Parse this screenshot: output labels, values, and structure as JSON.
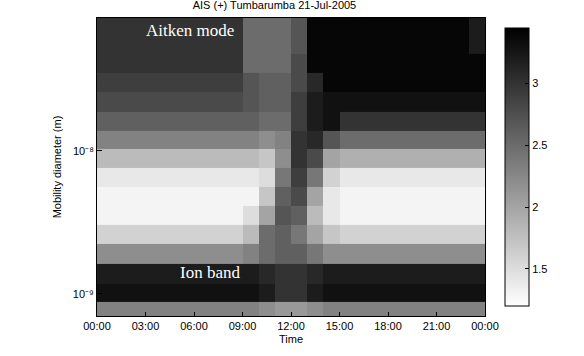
{
  "chart_data": {
    "type": "heatmap",
    "title": "AIS (+) Tumbarumba 21-Jul-2005",
    "x_label": "Time",
    "y_label": "Mobility diameter (m)",
    "log": "y",
    "grid": false,
    "x": [
      0.5,
      1.5,
      2.5,
      3.5,
      4.5,
      5.5,
      6.5,
      7.5,
      8.5,
      9.5,
      10.5,
      11.5,
      12.5,
      13.5,
      14.5,
      15.5,
      16.5,
      17.5,
      18.5,
      19.5,
      20.5,
      21.5,
      22.5,
      23.5
    ],
    "y": [
      7.6e-10,
      1e-09,
      1.4e-09,
      1.9e-09,
      2.6e-09,
      3.5e-09,
      4.8e-09,
      6.5e-09,
      8.8e-09,
      1.2e-08,
      1.6e-08,
      2.2e-08,
      3e-08,
      4.1e-08,
      5.5e-08,
      7.6e-08
    ],
    "xlim": [
      0,
      24
    ],
    "xticks": [
      {
        "value": 0,
        "label": "00:00"
      },
      {
        "value": 3,
        "label": "03:00"
      },
      {
        "value": 6,
        "label": "06:00"
      },
      {
        "value": 9,
        "label": "09:00"
      },
      {
        "value": 12,
        "label": "12:00"
      },
      {
        "value": 15,
        "label": "15:00"
      },
      {
        "value": 18,
        "label": "18:00"
      },
      {
        "value": 21,
        "label": "21:00"
      },
      {
        "value": 24,
        "label": "00:00"
      }
    ],
    "ylim": [
      7e-10,
      8.5e-08
    ],
    "yticks": [
      {
        "value": 1e-09,
        "label": "10⁻⁹"
      },
      {
        "value": 1e-08,
        "label": "10⁻⁸"
      }
    ],
    "cells": [
      [
        2.3,
        2.3,
        2.3,
        2.3,
        2.3,
        2.3,
        2.3,
        2.3,
        2.3,
        2.3,
        2.2,
        2.1,
        2.1,
        2.2,
        2.3,
        2.3,
        2.3,
        2.3,
        2.3,
        2.3,
        2.3,
        2.3,
        2.3,
        2.3
      ],
      [
        3.3,
        3.3,
        3.3,
        3.3,
        3.3,
        3.3,
        3.3,
        3.3,
        3.3,
        3.3,
        3.2,
        3.0,
        3.0,
        3.2,
        3.3,
        3.3,
        3.3,
        3.3,
        3.3,
        3.3,
        3.3,
        3.3,
        3.3,
        3.3
      ],
      [
        3.2,
        3.2,
        3.2,
        3.2,
        3.2,
        3.2,
        3.2,
        3.2,
        3.2,
        3.2,
        3.1,
        3.0,
        3.0,
        3.1,
        3.2,
        3.2,
        3.2,
        3.2,
        3.2,
        3.2,
        3.2,
        3.2,
        3.2,
        3.2
      ],
      [
        2.2,
        2.2,
        2.2,
        2.2,
        2.2,
        2.2,
        2.2,
        2.2,
        2.2,
        2.3,
        2.5,
        2.6,
        2.6,
        2.4,
        2.2,
        2.2,
        2.2,
        2.2,
        2.2,
        2.2,
        2.2,
        2.2,
        2.2,
        2.2
      ],
      [
        1.6,
        1.6,
        1.6,
        1.6,
        1.6,
        1.6,
        1.6,
        1.6,
        1.6,
        1.8,
        2.5,
        2.6,
        2.4,
        2.0,
        1.7,
        1.6,
        1.6,
        1.6,
        1.6,
        1.6,
        1.6,
        1.6,
        1.6,
        1.6
      ],
      [
        1.3,
        1.3,
        1.3,
        1.3,
        1.3,
        1.3,
        1.3,
        1.3,
        1.3,
        1.5,
        2.0,
        2.7,
        2.6,
        1.8,
        1.4,
        1.3,
        1.3,
        1.3,
        1.3,
        1.3,
        1.3,
        1.3,
        1.3,
        1.3
      ],
      [
        1.3,
        1.3,
        1.3,
        1.3,
        1.3,
        1.3,
        1.3,
        1.3,
        1.3,
        1.3,
        1.7,
        2.6,
        2.8,
        2.0,
        1.4,
        1.3,
        1.3,
        1.3,
        1.3,
        1.3,
        1.3,
        1.3,
        1.3,
        1.3
      ],
      [
        1.4,
        1.4,
        1.4,
        1.4,
        1.4,
        1.4,
        1.4,
        1.4,
        1.4,
        1.4,
        1.5,
        2.4,
        2.9,
        2.4,
        1.6,
        1.4,
        1.4,
        1.4,
        1.4,
        1.4,
        1.4,
        1.4,
        1.4,
        1.4
      ],
      [
        1.8,
        1.8,
        1.8,
        1.8,
        1.8,
        1.8,
        1.8,
        1.8,
        1.8,
        1.8,
        1.7,
        2.2,
        3.0,
        2.8,
        2.0,
        1.9,
        1.9,
        1.9,
        1.9,
        1.9,
        1.9,
        1.9,
        1.9,
        1.9
      ],
      [
        2.3,
        2.3,
        2.3,
        2.3,
        2.3,
        2.3,
        2.3,
        2.3,
        2.3,
        2.3,
        2.2,
        2.3,
        3.0,
        3.1,
        2.7,
        2.5,
        2.5,
        2.5,
        2.5,
        2.5,
        2.5,
        2.5,
        2.5,
        2.5
      ],
      [
        2.6,
        2.6,
        2.6,
        2.6,
        2.6,
        2.6,
        2.6,
        2.6,
        2.6,
        2.6,
        2.5,
        2.5,
        2.9,
        3.2,
        3.3,
        3.0,
        3.0,
        3.0,
        3.0,
        3.0,
        3.0,
        3.0,
        3.0,
        3.0
      ],
      [
        2.8,
        2.8,
        2.8,
        2.8,
        2.8,
        2.8,
        2.8,
        2.8,
        2.8,
        2.7,
        2.6,
        2.6,
        2.9,
        3.2,
        3.3,
        3.3,
        3.3,
        3.3,
        3.3,
        3.3,
        3.3,
        3.3,
        3.3,
        3.3
      ],
      [
        2.9,
        2.9,
        2.9,
        2.9,
        2.9,
        2.9,
        2.9,
        2.9,
        2.9,
        2.7,
        2.6,
        2.6,
        2.8,
        3.1,
        3.4,
        3.4,
        3.4,
        3.4,
        3.4,
        3.4,
        3.4,
        3.4,
        3.4,
        3.4
      ],
      [
        3.0,
        3.0,
        3.0,
        3.0,
        3.0,
        3.0,
        3.0,
        3.0,
        3.0,
        2.5,
        2.5,
        2.5,
        2.8,
        3.4,
        3.4,
        3.4,
        3.4,
        3.4,
        3.4,
        3.4,
        3.4,
        3.4,
        3.4,
        3.4
      ],
      [
        3.0,
        3.0,
        3.0,
        3.0,
        3.0,
        3.0,
        3.0,
        3.0,
        3.0,
        2.5,
        2.5,
        2.5,
        2.7,
        3.4,
        3.4,
        3.4,
        3.4,
        3.4,
        3.4,
        3.4,
        3.4,
        3.4,
        3.4,
        3.2
      ],
      [
        3.0,
        3.0,
        3.0,
        3.0,
        3.0,
        3.0,
        3.0,
        3.0,
        3.0,
        2.5,
        2.5,
        2.5,
        2.7,
        3.4,
        3.4,
        3.4,
        3.4,
        3.4,
        3.4,
        3.4,
        3.4,
        3.4,
        3.4,
        3.2
      ]
    ],
    "colorbar": {
      "range": [
        1.2,
        3.45
      ],
      "ticks": [
        1.5,
        2,
        2.5,
        3
      ]
    },
    "colors": [
      "#ffffff",
      "#000000"
    ],
    "annotations": [
      {
        "text": "Aitken mode",
        "x": 5.75,
        "y": 6.9e-08
      },
      {
        "text": "Ion band",
        "x": 7.0,
        "y": 1.42e-09
      }
    ]
  }
}
